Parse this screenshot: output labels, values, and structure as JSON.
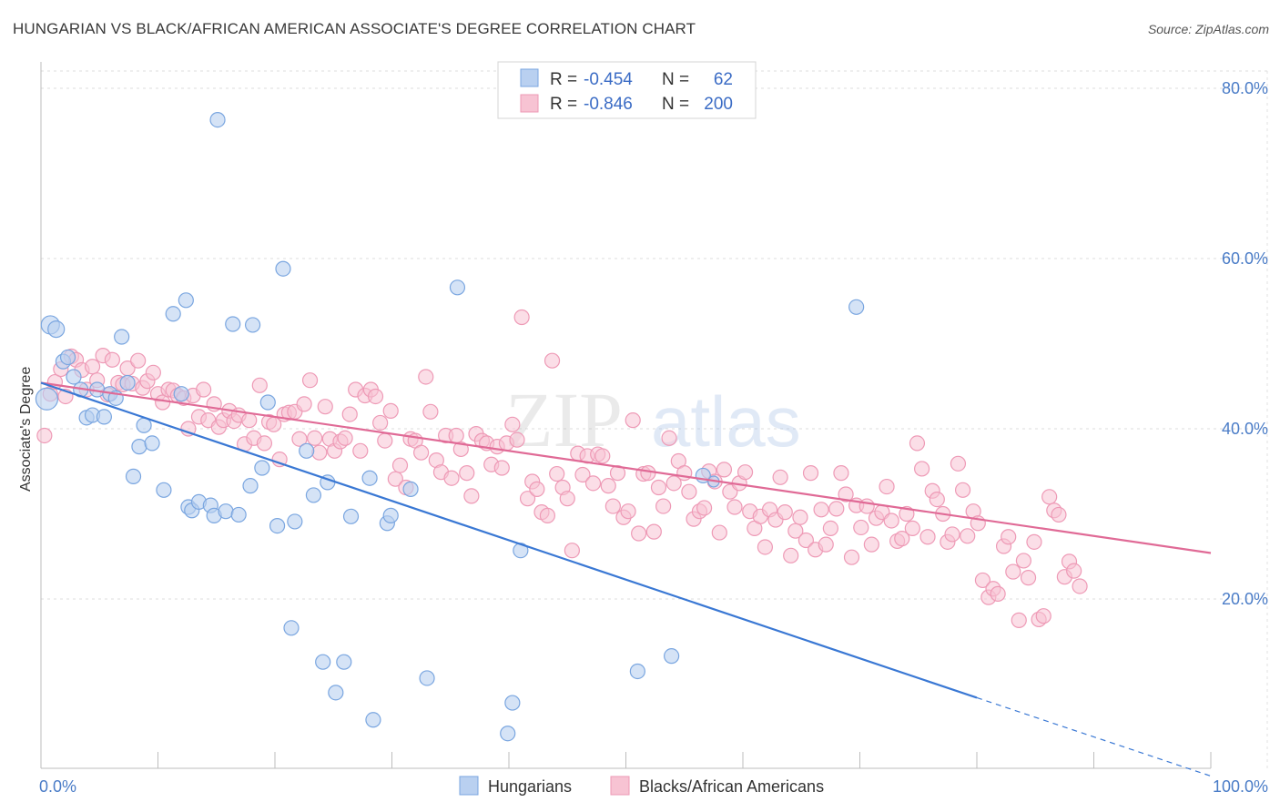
{
  "title": "HUNGARIAN VS BLACK/AFRICAN AMERICAN ASSOCIATE'S DEGREE CORRELATION CHART",
  "source": "Source: ZipAtlas.com",
  "watermark": {
    "zip": "ZIP",
    "atlas": "atlas"
  },
  "colors": {
    "blue": "#3a78d4",
    "blue_fill": "#b9d0f0",
    "blue_stroke": "#7aa6e0",
    "pink": "#e06a96",
    "pink_fill": "#f7c3d3",
    "pink_stroke": "#ee9ab6",
    "axis_text": "#4a7cc7",
    "grid": "#dcdcdc"
  },
  "legend": {
    "rows": [
      {
        "r_label": "R =",
        "r_value": "-0.454",
        "n_label": "N =",
        "n_value": "62",
        "series": "blue"
      },
      {
        "r_label": "R =",
        "r_value": "-0.846",
        "n_label": "N =",
        "n_value": "200",
        "series": "pink"
      }
    ]
  },
  "chart_data": {
    "type": "scatter",
    "title": "HUNGARIAN VS BLACK/AFRICAN AMERICAN ASSOCIATE'S DEGREE CORRELATION CHART",
    "xlabel": "",
    "ylabel": "Associate's Degree",
    "xlim": [
      0,
      100
    ],
    "ylim": [
      0,
      80
    ],
    "x_tick_labels": [
      "0.0%",
      "100.0%"
    ],
    "y_ticks": [
      20,
      40,
      60,
      80
    ],
    "y_tick_labels": [
      "20.0%",
      "40.0%",
      "60.0%",
      "80.0%"
    ],
    "grid": true,
    "legend_position": "top-center",
    "series": [
      {
        "name": "Hungarians",
        "color": "#3a78d4",
        "r": -0.454,
        "n": 62,
        "trend": {
          "x0": 0,
          "y0": 45.4,
          "x1": 80,
          "y1": 8.4,
          "dashed_to_x": 100,
          "dashed_to_y": -0.8
        },
        "points": [
          [
            0.5,
            43.5,
            12
          ],
          [
            0.8,
            52.2,
            10
          ],
          [
            1.3,
            51.7,
            9
          ],
          [
            1.9,
            47.9,
            8
          ],
          [
            2.3,
            48.4,
            8
          ],
          [
            2.8,
            46.1,
            8
          ],
          [
            3.4,
            44.6,
            8
          ],
          [
            3.9,
            41.3,
            8
          ],
          [
            4.4,
            41.6,
            8
          ],
          [
            4.8,
            44.6,
            8
          ],
          [
            5.4,
            41.4,
            8
          ],
          [
            5.9,
            44.1,
            8
          ],
          [
            6.4,
            43.6,
            8
          ],
          [
            6.9,
            50.8,
            8
          ],
          [
            7.4,
            45.4,
            8
          ],
          [
            7.9,
            34.4,
            8
          ],
          [
            8.4,
            37.9,
            8
          ],
          [
            8.8,
            40.4,
            8
          ],
          [
            9.5,
            38.3,
            8
          ],
          [
            10.5,
            32.8,
            8
          ],
          [
            11.3,
            53.5,
            8
          ],
          [
            12.0,
            44.1,
            8
          ],
          [
            12.4,
            55.1,
            8
          ],
          [
            12.6,
            30.8,
            8
          ],
          [
            12.9,
            30.4,
            8
          ],
          [
            13.5,
            31.4,
            8
          ],
          [
            14.5,
            31.0,
            8
          ],
          [
            14.8,
            29.8,
            8
          ],
          [
            15.1,
            76.3,
            8
          ],
          [
            15.8,
            30.3,
            8
          ],
          [
            16.4,
            52.3,
            8
          ],
          [
            16.9,
            29.9,
            8
          ],
          [
            17.9,
            33.3,
            8
          ],
          [
            18.1,
            52.2,
            8
          ],
          [
            18.9,
            35.4,
            8
          ],
          [
            19.4,
            43.1,
            8
          ],
          [
            20.2,
            28.6,
            8
          ],
          [
            20.7,
            58.8,
            8
          ],
          [
            21.4,
            16.6,
            8
          ],
          [
            21.7,
            29.1,
            8
          ],
          [
            22.7,
            37.4,
            8
          ],
          [
            23.3,
            32.2,
            8
          ],
          [
            24.1,
            12.6,
            8
          ],
          [
            24.5,
            33.7,
            8
          ],
          [
            25.2,
            9.0,
            8
          ],
          [
            25.9,
            12.6,
            8
          ],
          [
            26.5,
            29.7,
            8
          ],
          [
            28.1,
            34.2,
            8
          ],
          [
            28.4,
            5.8,
            8
          ],
          [
            29.6,
            28.9,
            8
          ],
          [
            29.9,
            29.8,
            8
          ],
          [
            31.6,
            32.9,
            8
          ],
          [
            33.0,
            10.7,
            8
          ],
          [
            35.6,
            56.6,
            8
          ],
          [
            39.9,
            4.2,
            8
          ],
          [
            40.3,
            7.8,
            8
          ],
          [
            41.0,
            25.7,
            8
          ],
          [
            51.0,
            11.5,
            8
          ],
          [
            53.9,
            13.3,
            8
          ],
          [
            56.6,
            34.5,
            8
          ],
          [
            69.7,
            54.3,
            8
          ],
          [
            57.5,
            33.8,
            6
          ]
        ]
      },
      {
        "name": "Blacks/African Americans",
        "color": "#e06a96",
        "r": -0.846,
        "n": 200,
        "trend": {
          "x0": 0,
          "y0": 45.4,
          "x1": 100,
          "y1": 25.4
        },
        "points": [
          [
            0.3,
            39.2
          ],
          [
            0.8,
            44.1
          ],
          [
            1.2,
            45.5
          ],
          [
            1.7,
            47.0
          ],
          [
            2.1,
            43.8
          ],
          [
            2.6,
            48.5
          ],
          [
            3.0,
            48.1
          ],
          [
            3.5,
            46.9
          ],
          [
            3.9,
            44.6
          ],
          [
            4.4,
            47.3
          ],
          [
            4.8,
            45.7
          ],
          [
            5.3,
            48.6
          ],
          [
            5.7,
            44.0
          ],
          [
            6.1,
            48.1
          ],
          [
            6.6,
            45.4
          ],
          [
            7.0,
            45.2
          ],
          [
            7.4,
            47.1
          ],
          [
            7.8,
            45.3
          ],
          [
            8.3,
            48.0
          ],
          [
            8.7,
            44.8
          ],
          [
            9.1,
            45.6
          ],
          [
            9.6,
            46.6
          ],
          [
            10.0,
            44.1
          ],
          [
            10.4,
            43.1
          ],
          [
            10.9,
            44.6
          ],
          [
            11.3,
            44.5
          ],
          [
            11.7,
            43.9
          ],
          [
            12.2,
            43.6
          ],
          [
            12.6,
            40.0
          ],
          [
            13.0,
            43.9
          ],
          [
            13.5,
            41.4
          ],
          [
            13.9,
            44.6
          ],
          [
            14.3,
            41.0
          ],
          [
            14.8,
            42.9
          ],
          [
            15.2,
            40.2
          ],
          [
            15.6,
            41.0
          ],
          [
            16.1,
            42.1
          ],
          [
            16.5,
            40.9
          ],
          [
            16.9,
            41.6
          ],
          [
            17.4,
            38.2
          ],
          [
            17.8,
            41.0
          ],
          [
            18.2,
            38.9
          ],
          [
            18.7,
            45.1
          ],
          [
            19.1,
            38.3
          ],
          [
            19.5,
            40.8
          ],
          [
            19.9,
            40.5
          ],
          [
            20.4,
            36.4
          ],
          [
            20.8,
            41.7
          ],
          [
            21.2,
            41.9
          ],
          [
            21.7,
            42.0
          ],
          [
            22.1,
            38.8
          ],
          [
            22.5,
            42.9
          ],
          [
            23.0,
            45.7
          ],
          [
            23.4,
            38.9
          ],
          [
            23.8,
            37.2
          ],
          [
            24.3,
            42.6
          ],
          [
            24.7,
            38.8
          ],
          [
            25.1,
            37.4
          ],
          [
            25.6,
            38.5
          ],
          [
            26.0,
            38.9
          ],
          [
            26.4,
            41.7
          ],
          [
            26.9,
            44.6
          ],
          [
            27.3,
            37.4
          ],
          [
            27.7,
            43.9
          ],
          [
            28.2,
            44.6
          ],
          [
            28.6,
            43.8
          ],
          [
            29.0,
            40.7
          ],
          [
            29.4,
            38.6
          ],
          [
            29.9,
            42.1
          ],
          [
            30.3,
            34.1
          ],
          [
            30.7,
            35.7
          ],
          [
            31.2,
            33.1
          ],
          [
            31.6,
            38.8
          ],
          [
            32.0,
            38.6
          ],
          [
            32.5,
            37.2
          ],
          [
            32.9,
            46.1
          ],
          [
            33.3,
            42.0
          ],
          [
            33.8,
            36.3
          ],
          [
            34.2,
            34.9
          ],
          [
            34.6,
            39.2
          ],
          [
            35.1,
            34.2
          ],
          [
            35.5,
            39.2
          ],
          [
            35.9,
            37.6
          ],
          [
            36.4,
            34.8
          ],
          [
            36.8,
            32.1
          ],
          [
            37.2,
            39.4
          ],
          [
            37.7,
            38.6
          ],
          [
            38.1,
            38.3
          ],
          [
            38.5,
            35.8
          ],
          [
            39.0,
            37.9
          ],
          [
            39.4,
            35.4
          ],
          [
            39.8,
            38.3
          ],
          [
            40.3,
            40.5
          ],
          [
            40.7,
            38.7
          ],
          [
            41.1,
            53.1
          ],
          [
            41.6,
            31.8
          ],
          [
            42.0,
            33.8
          ],
          [
            42.4,
            32.9
          ],
          [
            42.8,
            30.2
          ],
          [
            43.3,
            29.8
          ],
          [
            43.7,
            48.0
          ],
          [
            44.1,
            34.7
          ],
          [
            44.6,
            33.1
          ],
          [
            45.0,
            31.8
          ],
          [
            45.4,
            25.7
          ],
          [
            45.9,
            37.1
          ],
          [
            46.3,
            34.6
          ],
          [
            46.7,
            36.8
          ],
          [
            47.2,
            33.6
          ],
          [
            47.6,
            37.0
          ],
          [
            48.0,
            36.8
          ],
          [
            48.5,
            33.3
          ],
          [
            48.9,
            30.9
          ],
          [
            49.3,
            34.8
          ],
          [
            49.8,
            29.6
          ],
          [
            50.2,
            30.3
          ],
          [
            50.6,
            41.0
          ],
          [
            51.1,
            27.7
          ],
          [
            51.5,
            34.7
          ],
          [
            51.9,
            34.8
          ],
          [
            52.4,
            27.9
          ],
          [
            52.8,
            33.1
          ],
          [
            53.2,
            30.9
          ],
          [
            53.7,
            38.9
          ],
          [
            54.1,
            33.6
          ],
          [
            54.5,
            36.2
          ],
          [
            55.0,
            34.8
          ],
          [
            55.4,
            32.6
          ],
          [
            55.8,
            29.4
          ],
          [
            56.3,
            30.3
          ],
          [
            56.7,
            30.7
          ],
          [
            57.1,
            35.0
          ],
          [
            57.6,
            33.8
          ],
          [
            58.0,
            27.8
          ],
          [
            58.4,
            35.2
          ],
          [
            58.9,
            32.6
          ],
          [
            59.3,
            30.8
          ],
          [
            59.7,
            33.6
          ],
          [
            60.2,
            34.9
          ],
          [
            60.6,
            30.3
          ],
          [
            61.0,
            28.3
          ],
          [
            61.5,
            29.7
          ],
          [
            61.9,
            26.1
          ],
          [
            62.3,
            30.5
          ],
          [
            62.8,
            29.3
          ],
          [
            63.2,
            34.3
          ],
          [
            63.6,
            30.2
          ],
          [
            64.1,
            25.1
          ],
          [
            64.5,
            28.0
          ],
          [
            64.9,
            29.6
          ],
          [
            65.4,
            26.9
          ],
          [
            65.8,
            34.8
          ],
          [
            66.2,
            25.8
          ],
          [
            66.7,
            30.5
          ],
          [
            67.1,
            26.4
          ],
          [
            67.5,
            28.3
          ],
          [
            68.0,
            30.6
          ],
          [
            68.4,
            34.8
          ],
          [
            68.8,
            32.3
          ],
          [
            69.3,
            24.9
          ],
          [
            69.7,
            31.0
          ],
          [
            70.1,
            28.4
          ],
          [
            70.6,
            30.9
          ],
          [
            71.0,
            26.4
          ],
          [
            71.4,
            29.5
          ],
          [
            71.9,
            30.2
          ],
          [
            72.3,
            33.2
          ],
          [
            72.7,
            29.2
          ],
          [
            73.2,
            26.8
          ],
          [
            73.6,
            27.1
          ],
          [
            74.0,
            30.0
          ],
          [
            74.5,
            28.3
          ],
          [
            74.9,
            38.3
          ],
          [
            75.3,
            35.3
          ],
          [
            75.8,
            27.3
          ],
          [
            76.2,
            32.7
          ],
          [
            76.6,
            31.7
          ],
          [
            77.1,
            30.0
          ],
          [
            77.5,
            26.7
          ],
          [
            77.9,
            27.6
          ],
          [
            78.4,
            35.9
          ],
          [
            78.8,
            32.8
          ],
          [
            79.2,
            27.4
          ],
          [
            79.7,
            30.3
          ],
          [
            80.1,
            28.9
          ],
          [
            80.5,
            22.2
          ],
          [
            81.0,
            20.2
          ],
          [
            81.4,
            21.2
          ],
          [
            81.8,
            20.6
          ],
          [
            82.3,
            26.2
          ],
          [
            82.7,
            27.3
          ],
          [
            83.1,
            23.2
          ],
          [
            83.6,
            17.5
          ],
          [
            84.0,
            24.5
          ],
          [
            84.4,
            22.5
          ],
          [
            84.9,
            26.7
          ],
          [
            85.3,
            17.6
          ],
          [
            85.7,
            18.0
          ],
          [
            86.2,
            32.0
          ],
          [
            86.6,
            30.4
          ],
          [
            87.0,
            29.9
          ],
          [
            87.5,
            22.6
          ],
          [
            87.9,
            24.4
          ],
          [
            88.3,
            23.3
          ],
          [
            88.8,
            21.5
          ]
        ]
      }
    ]
  },
  "bottom_legend": [
    "Hungarians",
    "Blacks/African Americans"
  ]
}
